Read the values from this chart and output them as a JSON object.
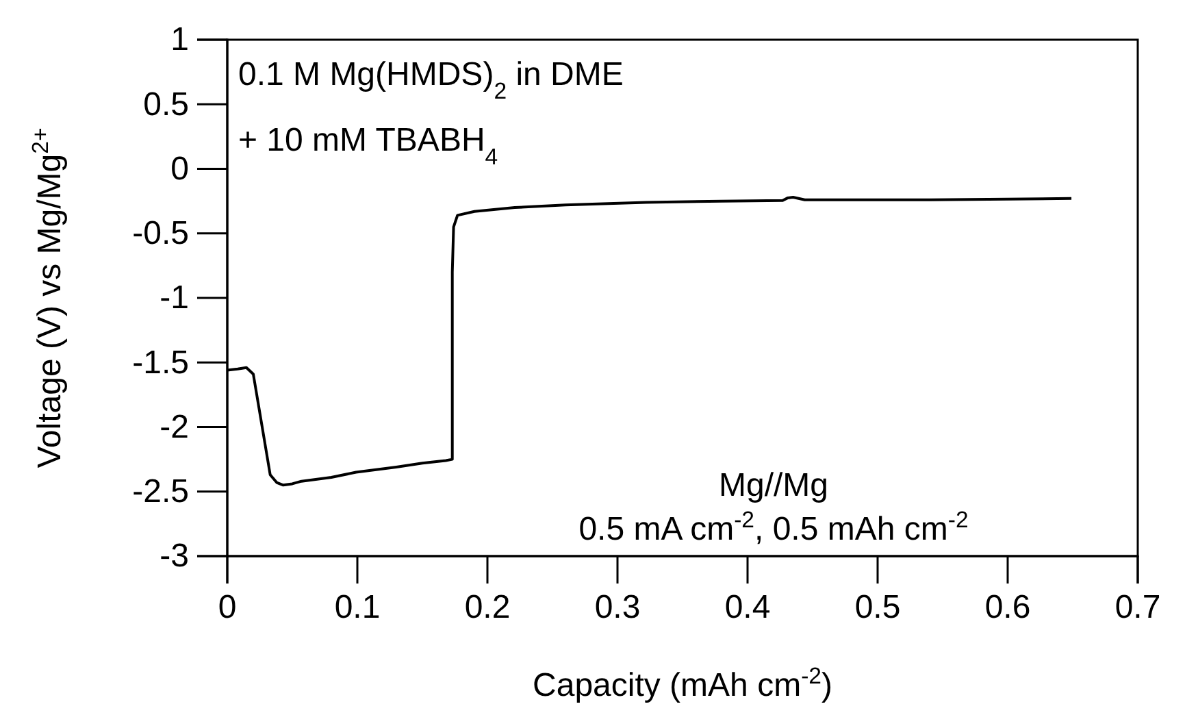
{
  "chart_data": {
    "type": "line",
    "xlabel": "Capacity (mAh cm$^{-2}$)",
    "ylabel": "Voltage (V) vs Mg/Mg$^{2+}$",
    "annotations": [
      "0.1 M Mg(HMDS)$_{2}$ in DME",
      "+ 10 mM TBABH$_{4}$",
      "Mg//Mg",
      "0.5 mA cm$^{-2}$, 0.5 mAh cm$^{-2}$"
    ],
    "series": [
      {
        "color": "#000000",
        "x": [
          0,
          0.008,
          0.0147,
          0.02,
          0.027,
          0.033,
          0.038,
          0.043,
          0.05,
          0.057,
          0.08,
          0.099,
          0.13,
          0.15,
          0.168,
          0.173,
          0.173,
          0.174,
          0.177,
          0.19,
          0.221,
          0.26,
          0.322,
          0.38,
          0.427,
          0.431,
          0.435,
          0.444,
          0.49,
          0.54,
          0.6,
          0.649
        ],
        "values": [
          -1.56,
          -1.55,
          -1.54,
          -1.59,
          -2.01,
          -2.37,
          -2.43,
          -2.45,
          -2.44,
          -2.42,
          -2.39,
          -2.35,
          -2.31,
          -2.28,
          -2.26,
          -2.25,
          -0.8,
          -0.45,
          -0.36,
          -0.33,
          -0.3,
          -0.28,
          -0.26,
          -0.25,
          -0.245,
          -0.225,
          -0.22,
          -0.24,
          -0.24,
          -0.24,
          -0.235,
          -0.23
        ]
      }
    ],
    "xlim": [
      0,
      0.7
    ],
    "ylim": [
      -3,
      1
    ],
    "xticks": [
      0,
      0.1,
      0.2,
      0.3,
      0.4,
      0.5,
      0.6,
      0.7
    ],
    "yticks": [
      -3,
      -2.5,
      -2,
      -1.5,
      -1,
      -0.5,
      0,
      0.5,
      1
    ],
    "grid": false,
    "marker": "none",
    "line_style": "solid"
  }
}
